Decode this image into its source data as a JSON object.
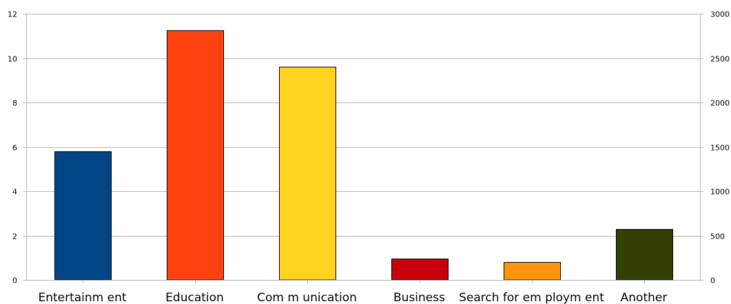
{
  "chart_data": {
    "type": "bar",
    "categories": [
      "Entertainm ent",
      "Education",
      "Com m unication",
      "Business",
      "Search for em ploym ent",
      "Another"
    ],
    "values": [
      5.8,
      11.25,
      9.6,
      0.95,
      0.8,
      2.3
    ],
    "colors": [
      "#004586",
      "#ff420e",
      "#ffd320",
      "#c5000b",
      "#ff950e",
      "#314004"
    ],
    "title": "",
    "xlabel": "",
    "ylabel": "",
    "ylim": [
      0,
      12
    ],
    "y_ticks": [
      "0",
      "2",
      "4",
      "6",
      "8",
      "10",
      "12"
    ],
    "y2lim": [
      0,
      3000
    ],
    "y2_ticks": [
      "0",
      "500",
      "1000",
      "1500",
      "2000",
      "2500",
      "3000"
    ],
    "grid": true,
    "legend": "none"
  }
}
